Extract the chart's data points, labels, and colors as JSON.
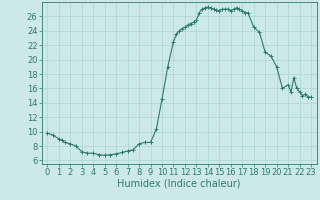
{
  "x": [
    0,
    0.5,
    1,
    1.25,
    1.5,
    2,
    2.5,
    3,
    3.5,
    4,
    4.5,
    5,
    5.5,
    6,
    6.5,
    7,
    7.5,
    8,
    8.5,
    9,
    9.5,
    10,
    10.5,
    11,
    11.25,
    11.5,
    11.75,
    12,
    12.25,
    12.5,
    12.75,
    13,
    13.25,
    13.5,
    13.75,
    14,
    14.25,
    14.5,
    14.75,
    15,
    15.25,
    15.5,
    15.75,
    16,
    16.25,
    16.5,
    16.75,
    17,
    17.25,
    17.5,
    18,
    18.5,
    19,
    19.5,
    20,
    20.5,
    21,
    21.25,
    21.5,
    21.75,
    22,
    22.25,
    22.5,
    22.75,
    23
  ],
  "y": [
    9.8,
    9.5,
    9.0,
    8.8,
    8.5,
    8.3,
    8.0,
    7.2,
    7.0,
    7.0,
    6.8,
    6.7,
    6.8,
    6.9,
    7.1,
    7.3,
    7.5,
    8.3,
    8.5,
    8.5,
    10.3,
    14.5,
    19.0,
    22.5,
    23.5,
    24.0,
    24.3,
    24.5,
    24.8,
    25.0,
    25.2,
    25.5,
    26.5,
    27.0,
    27.2,
    27.3,
    27.2,
    27.0,
    26.9,
    26.8,
    27.0,
    27.0,
    27.0,
    26.8,
    27.0,
    27.2,
    27.0,
    26.8,
    26.5,
    26.5,
    24.5,
    23.8,
    21.0,
    20.5,
    19.0,
    16.0,
    16.5,
    15.5,
    17.5,
    16.0,
    15.5,
    15.0,
    15.2,
    14.8,
    14.8
  ],
  "xlabel": "Humidex (Indice chaleur)",
  "xlim": [
    -0.5,
    23.5
  ],
  "ylim": [
    5.5,
    28
  ],
  "yticks": [
    6,
    8,
    10,
    12,
    14,
    16,
    18,
    20,
    22,
    24,
    26
  ],
  "xticks": [
    0,
    1,
    2,
    3,
    4,
    5,
    6,
    7,
    8,
    9,
    10,
    11,
    12,
    13,
    14,
    15,
    16,
    17,
    18,
    19,
    20,
    21,
    22,
    23
  ],
  "line_color": "#2d7b6e",
  "marker_color": "#2d7b6e",
  "bg_color": "#cce8e8",
  "grid_color": "#aad4d4",
  "axis_color": "#2d7b6e",
  "tick_label_color": "#2d7b6e",
  "xlabel_color": "#2d7b6e",
  "xlabel_fontsize": 7,
  "tick_fontsize": 6
}
